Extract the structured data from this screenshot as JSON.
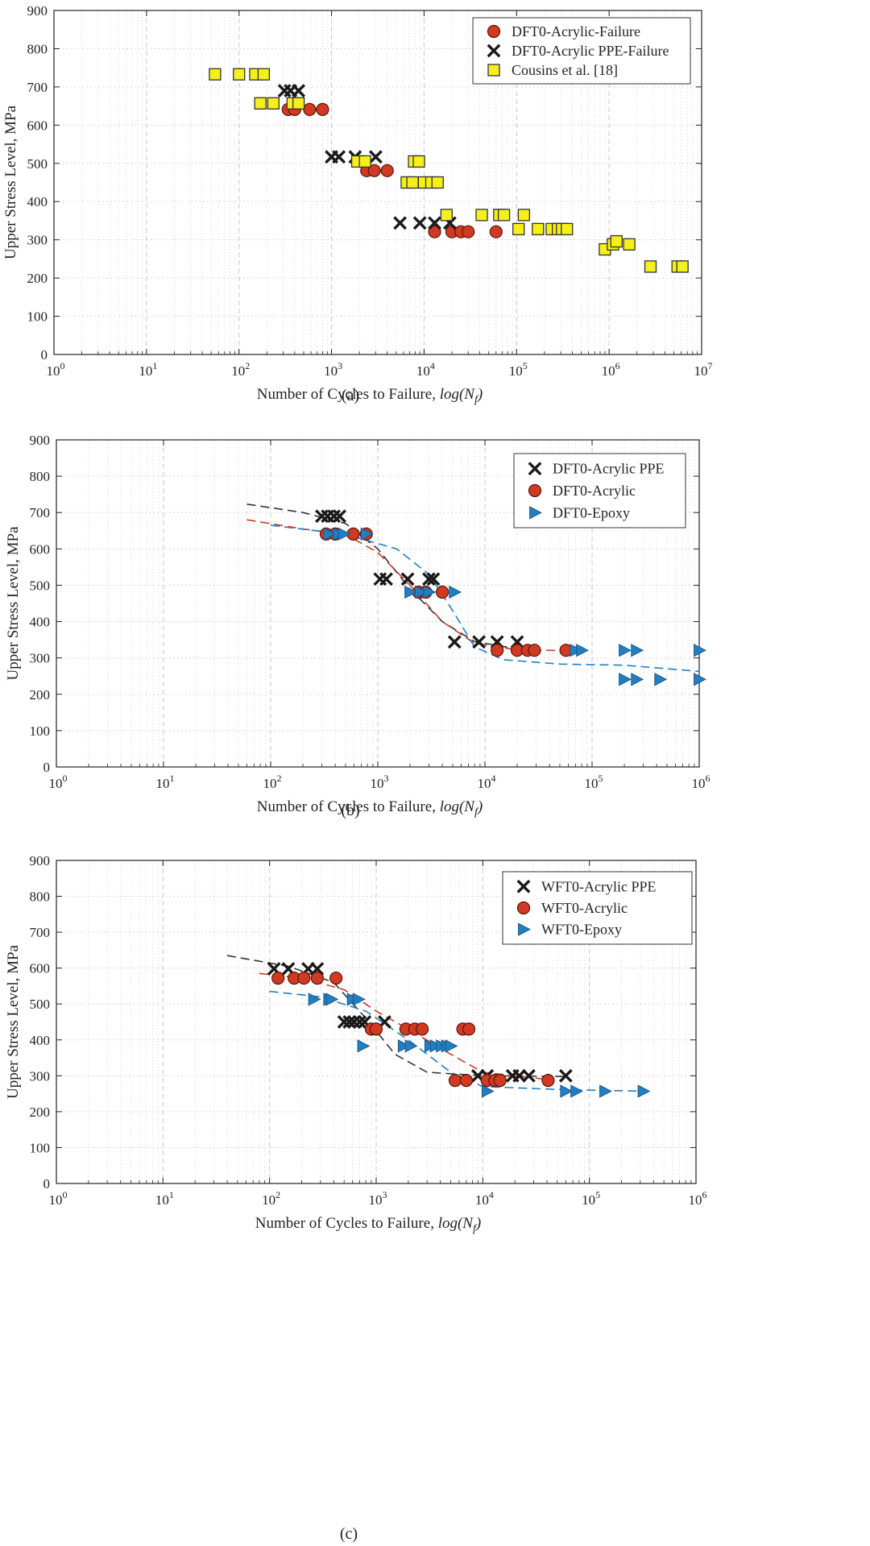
{
  "chart_data": [
    {
      "type": "scatter",
      "caption": "(a)",
      "xlabel": "Number of Cycles to Failure, log(N_f)",
      "ylabel": "Upper Stress Level, MPa",
      "xscale": "log",
      "xlim": [
        1,
        10000000
      ],
      "ylim": [
        0,
        900
      ],
      "yticks": [
        0,
        100,
        200,
        300,
        400,
        500,
        600,
        700,
        800,
        900
      ],
      "xticks": [
        {
          "base": "10",
          "exp": "0"
        },
        {
          "base": "10",
          "exp": "1"
        },
        {
          "base": "10",
          "exp": "2"
        },
        {
          "base": "10",
          "exp": "3"
        },
        {
          "base": "10",
          "exp": "4"
        },
        {
          "base": "10",
          "exp": "5"
        },
        {
          "base": "10",
          "exp": "6"
        },
        {
          "base": "10",
          "exp": "7"
        }
      ],
      "grid": true,
      "legend_position": "top-right",
      "series": [
        {
          "name": "DFT0-Acrylic-Failure",
          "marker": "circle",
          "color": "#d13a22",
          "points": [
            [
              340,
              641
            ],
            [
              400,
              641
            ],
            [
              580,
              641
            ],
            [
              800,
              641
            ],
            [
              2400,
              481
            ],
            [
              2900,
              481
            ],
            [
              4000,
              481
            ],
            [
              13000,
              321
            ],
            [
              20000,
              321
            ],
            [
              25000,
              321
            ],
            [
              30000,
              321
            ],
            [
              60000,
              321
            ]
          ]
        },
        {
          "name": "DFT0-Acrylic PPE-Failure",
          "marker": "x",
          "color": "#1a1a1a",
          "points": [
            [
              310,
              690
            ],
            [
              360,
              690
            ],
            [
              440,
              690
            ],
            [
              1000,
              517
            ],
            [
              1200,
              517
            ],
            [
              1800,
              517
            ],
            [
              3000,
              517
            ],
            [
              5500,
              344
            ],
            [
              9000,
              344
            ],
            [
              13000,
              344
            ],
            [
              19000,
              344
            ]
          ]
        },
        {
          "name": "Cousins et al. [18]",
          "marker": "square",
          "color": "#f5ef1a",
          "points": [
            [
              55,
              733
            ],
            [
              100,
              733
            ],
            [
              150,
              733
            ],
            [
              185,
              733
            ],
            [
              170,
              657
            ],
            [
              235,
              657
            ],
            [
              380,
              657
            ],
            [
              440,
              657
            ],
            [
              1900,
              505
            ],
            [
              2300,
              505
            ],
            [
              7800,
              505
            ],
            [
              8800,
              505
            ],
            [
              6500,
              450
            ],
            [
              7500,
              450
            ],
            [
              10000,
              450
            ],
            [
              12000,
              450
            ],
            [
              14000,
              450
            ],
            [
              17500,
              365
            ],
            [
              42000,
              365
            ],
            [
              65000,
              365
            ],
            [
              73000,
              365
            ],
            [
              120000,
              365
            ],
            [
              105000,
              328
            ],
            [
              170000,
              328
            ],
            [
              240000,
              328
            ],
            [
              280000,
              328
            ],
            [
              310000,
              328
            ],
            [
              350000,
              328
            ],
            [
              900000,
              275
            ],
            [
              1100000,
              288
            ],
            [
              1200000,
              296
            ],
            [
              1650000,
              288
            ],
            [
              2800000,
              230
            ],
            [
              5500000,
              230
            ],
            [
              6200000,
              230
            ]
          ]
        }
      ]
    },
    {
      "type": "scatter",
      "caption": "(b)",
      "xlabel": "Number of Cycles to Failure, log(N_f)",
      "ylabel": "Upper Stress Level, MPa",
      "xscale": "log",
      "xlim": [
        1,
        1000000
      ],
      "ylim": [
        0,
        900
      ],
      "yticks": [
        0,
        100,
        200,
        300,
        400,
        500,
        600,
        700,
        800,
        900
      ],
      "xticks": [
        {
          "base": "10",
          "exp": "0"
        },
        {
          "base": "10",
          "exp": "1"
        },
        {
          "base": "10",
          "exp": "2"
        },
        {
          "base": "10",
          "exp": "3"
        },
        {
          "base": "10",
          "exp": "4"
        },
        {
          "base": "10",
          "exp": "5"
        },
        {
          "base": "10",
          "exp": "6"
        }
      ],
      "grid": true,
      "legend_position": "top-right",
      "series": [
        {
          "name": "DFT0-Acrylic PPE",
          "marker": "x",
          "color": "#1a1a1a",
          "points": [
            [
              300,
              690
            ],
            [
              340,
              690
            ],
            [
              390,
              690
            ],
            [
              440,
              690
            ],
            [
              1050,
              517
            ],
            [
              1200,
              517
            ],
            [
              1900,
              517
            ],
            [
              3000,
              517
            ],
            [
              3300,
              517
            ],
            [
              5200,
              344
            ],
            [
              8800,
              344
            ],
            [
              13000,
              344
            ],
            [
              20000,
              344
            ]
          ],
          "fit": [
            [
              60,
              723
            ],
            [
              200,
              700
            ],
            [
              500,
              670
            ],
            [
              1000,
              600
            ],
            [
              2000,
              490
            ],
            [
              4000,
              400
            ],
            [
              8000,
              345
            ],
            [
              20000,
              325
            ]
          ]
        },
        {
          "name": "DFT0-Acrylic",
          "marker": "circle",
          "color": "#d13a22",
          "points": [
            [
              330,
              641
            ],
            [
              400,
              641
            ],
            [
              590,
              641
            ],
            [
              780,
              641
            ],
            [
              2400,
              481
            ],
            [
              2800,
              481
            ],
            [
              4000,
              481
            ],
            [
              13000,
              321
            ],
            [
              20000,
              321
            ],
            [
              25000,
              321
            ],
            [
              29000,
              321
            ],
            [
              57000,
              321
            ]
          ],
          "fit": [
            [
              60,
              680
            ],
            [
              200,
              655
            ],
            [
              500,
              640
            ],
            [
              1000,
              590
            ],
            [
              2000,
              500
            ],
            [
              4000,
              400
            ],
            [
              8000,
              340
            ],
            [
              20000,
              322
            ],
            [
              57000,
              320
            ]
          ]
        },
        {
          "name": "DFT0-Epoxy",
          "marker": "triangle",
          "color": "#1f7fc2",
          "points": [
            [
              350,
              641
            ],
            [
              430,
              641
            ],
            [
              480,
              641
            ],
            [
              780,
              641
            ],
            [
              2000,
              481
            ],
            [
              2500,
              481
            ],
            [
              3000,
              481
            ],
            [
              5200,
              481
            ],
            [
              70000,
              321
            ],
            [
              80000,
              321
            ],
            [
              200000,
              321
            ],
            [
              260000,
              321
            ],
            [
              1000000,
              321
            ],
            [
              200000,
              241
            ],
            [
              260000,
              241
            ],
            [
              430000,
              241
            ],
            [
              1000000,
              241
            ]
          ],
          "fit": [
            [
              100,
              665
            ],
            [
              500,
              640
            ],
            [
              1500,
              600
            ],
            [
              3000,
              530
            ],
            [
              5000,
              430
            ],
            [
              8000,
              330
            ],
            [
              15000,
              295
            ],
            [
              50000,
              283
            ],
            [
              200000,
              280
            ],
            [
              1000000,
              263
            ]
          ]
        }
      ]
    },
    {
      "type": "scatter",
      "caption": "(c)",
      "xlabel": "Number of Cycles to Failure, log(N_f)",
      "ylabel": "Upper Stress Level, MPa",
      "xscale": "log",
      "xlim": [
        1,
        1000000
      ],
      "ylim": [
        0,
        900
      ],
      "yticks": [
        0,
        100,
        200,
        300,
        400,
        500,
        600,
        700,
        800,
        900
      ],
      "xticks": [
        {
          "base": "10",
          "exp": "0"
        },
        {
          "base": "10",
          "exp": "1"
        },
        {
          "base": "10",
          "exp": "2"
        },
        {
          "base": "10",
          "exp": "3"
        },
        {
          "base": "10",
          "exp": "4"
        },
        {
          "base": "10",
          "exp": "5"
        },
        {
          "base": "10",
          "exp": "6"
        }
      ],
      "grid": true,
      "legend_position": "top-right",
      "series": [
        {
          "name": "WFT0-Acrylic PPE",
          "marker": "x",
          "color": "#1a1a1a",
          "points": [
            [
              110,
              598
            ],
            [
              150,
              598
            ],
            [
              230,
              598
            ],
            [
              280,
              598
            ],
            [
              500,
              450
            ],
            [
              560,
              450
            ],
            [
              620,
              450
            ],
            [
              700,
              450
            ],
            [
              780,
              450
            ],
            [
              1200,
              450
            ],
            [
              9000,
              300
            ],
            [
              11000,
              300
            ],
            [
              19000,
              300
            ],
            [
              22000,
              300
            ],
            [
              27000,
              300
            ],
            [
              60000,
              300
            ]
          ],
          "fit": [
            [
              40,
              635
            ],
            [
              150,
              605
            ],
            [
              400,
              560
            ],
            [
              800,
              460
            ],
            [
              1500,
              360
            ],
            [
              3000,
              310
            ],
            [
              10000,
              300
            ],
            [
              60000,
              298
            ]
          ]
        },
        {
          "name": "WFT0-Acrylic",
          "marker": "circle",
          "color": "#d13a22",
          "points": [
            [
              120,
              572
            ],
            [
              170,
              572
            ],
            [
              210,
              572
            ],
            [
              280,
              572
            ],
            [
              420,
              572
            ],
            [
              900,
              430
            ],
            [
              1000,
              430
            ],
            [
              1900,
              430
            ],
            [
              2300,
              430
            ],
            [
              2700,
              430
            ],
            [
              6500,
              430
            ],
            [
              7400,
              430
            ],
            [
              5500,
              287
            ],
            [
              7000,
              287
            ],
            [
              11000,
              287
            ],
            [
              13000,
              287
            ],
            [
              14500,
              287
            ],
            [
              41000,
              287
            ]
          ],
          "fit": [
            [
              80,
              585
            ],
            [
              200,
              572
            ],
            [
              500,
              540
            ],
            [
              1000,
              480
            ],
            [
              2000,
              430
            ],
            [
              5000,
              360
            ],
            [
              10000,
              310
            ],
            [
              40000,
              290
            ]
          ]
        },
        {
          "name": "WFT0-Epoxy",
          "marker": "triangle",
          "color": "#1f7fc2",
          "points": [
            [
              260,
              513
            ],
            [
              360,
              513
            ],
            [
              380,
              513
            ],
            [
              600,
              513
            ],
            [
              680,
              513
            ],
            [
              750,
              383
            ],
            [
              1800,
              383
            ],
            [
              2100,
              383
            ],
            [
              3200,
              383
            ],
            [
              3600,
              383
            ],
            [
              4100,
              383
            ],
            [
              4600,
              383
            ],
            [
              5000,
              383
            ],
            [
              11000,
              257
            ],
            [
              60000,
              257
            ],
            [
              75000,
              257
            ],
            [
              140000,
              257
            ],
            [
              320000,
              257
            ]
          ],
          "fit": [
            [
              100,
              535
            ],
            [
              300,
              520
            ],
            [
              800,
              480
            ],
            [
              2000,
              400
            ],
            [
              5000,
              310
            ],
            [
              10000,
              270
            ],
            [
              50000,
              262
            ],
            [
              320000,
              257
            ]
          ]
        }
      ]
    }
  ]
}
